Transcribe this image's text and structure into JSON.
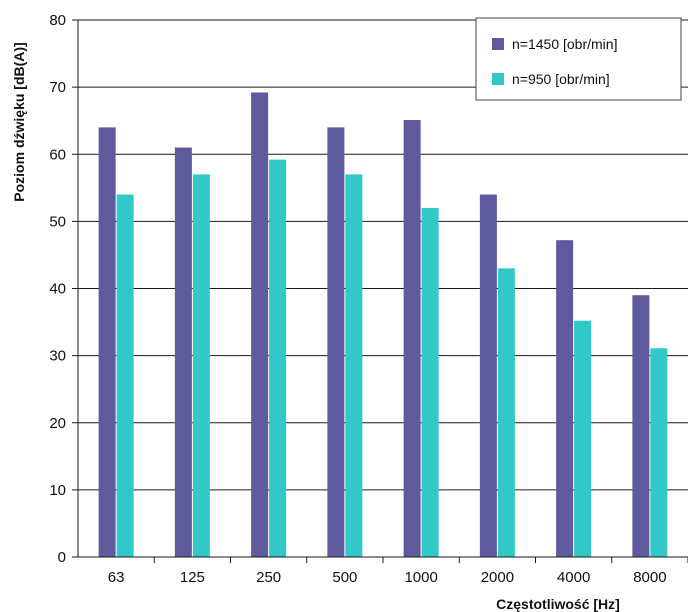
{
  "colors": {
    "series1": "#5f5a9d",
    "series2": "#32c8c8",
    "grid": "#1a1a1a",
    "background": "#ffffff"
  },
  "chart_data": {
    "type": "bar",
    "categories": [
      "63",
      "125",
      "250",
      "500",
      "1000",
      "2000",
      "4000",
      "8000"
    ],
    "series": [
      {
        "name": "n=1450 [obr/min]",
        "values": [
          64,
          61,
          69.2,
          64,
          65.1,
          54,
          47.2,
          39
        ]
      },
      {
        "name": "n=950 [obr/min]",
        "values": [
          54,
          57,
          59.2,
          57,
          52,
          43,
          35.2,
          31.1
        ]
      }
    ],
    "title": "",
    "xlabel": "Częstotliwość [Hz]",
    "ylabel": "Poziom dźwięku [dB(A)]",
    "ylim": [
      0,
      80
    ],
    "yticks": [
      "0",
      "10",
      "20",
      "30",
      "40",
      "50",
      "60",
      "70",
      "80"
    ],
    "grid": true,
    "legend": "top-right"
  }
}
